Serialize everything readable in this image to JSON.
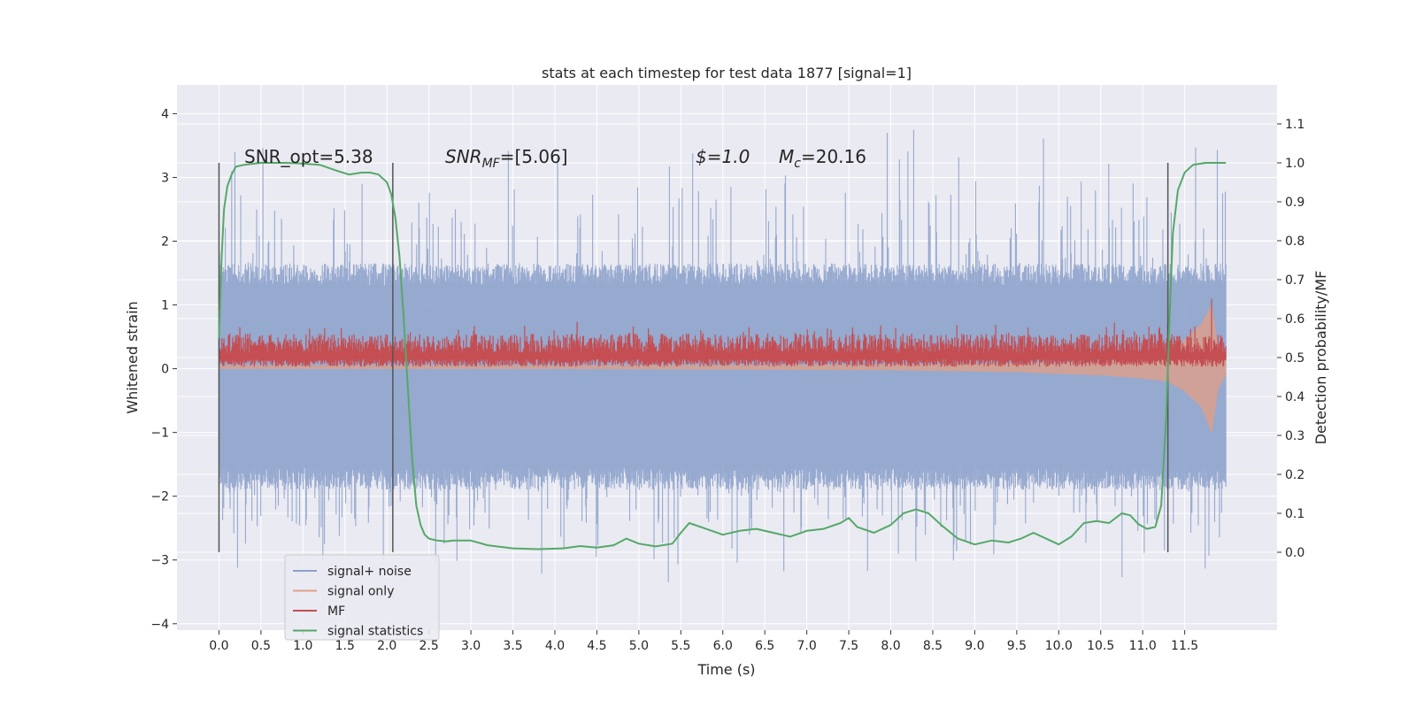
{
  "chart_data": {
    "type": "line",
    "title": "stats at each timestep for test data 1877 [signal=1]",
    "xlabel": "Time (s)",
    "ylabel_left": "Whitened strain",
    "ylabel_right": "Detection probability/MF",
    "xlim": [
      -0.5,
      12.6
    ],
    "ylim_left": [
      -4.1,
      4.45
    ],
    "ylim_right": [
      -0.2,
      1.2
    ],
    "x_ticks": [
      "0.0",
      "0.5",
      "1.0",
      "1.5",
      "2.0",
      "2.5",
      "3.0",
      "3.5",
      "4.0",
      "4.5",
      "5.0",
      "5.5",
      "6.0",
      "6.5",
      "7.0",
      "7.5",
      "8.0",
      "8.5",
      "9.0",
      "9.5",
      "10.0",
      "10.5",
      "11.0",
      "11.5"
    ],
    "y_ticks_left": [
      "4",
      "3",
      "2",
      "1",
      "0",
      "−1",
      "−2",
      "−3",
      "−4"
    ],
    "y_ticks_right": [
      "1.1",
      "1.0",
      "0.9",
      "0.8",
      "0.7",
      "0.6",
      "0.5",
      "0.4",
      "0.3",
      "0.2",
      "0.1",
      "0.0"
    ],
    "grid": true,
    "legend_position": "bottom-left",
    "colors": {
      "noise": "#8da2cb",
      "signal_only": "#e39f85",
      "mf": "#c44e52",
      "stat": "#55a868",
      "vline": "#555555",
      "plot_bg": "#eaeaf2"
    },
    "annotations": {
      "snr_opt": "SNR_opt=5.38",
      "snr_mf_main": "SNR",
      "snr_mf_sub": "MF",
      "snr_mf_value": "=[5.06]",
      "s_text": "$=1.0",
      "mc_main": "M",
      "mc_sub": "c",
      "mc_value": "=20.16"
    },
    "vertical_lines_x": [
      0.0,
      2.07,
      11.3
    ],
    "series": [
      {
        "name": "signal+ noise",
        "x_range": [
          0.0,
          11.99
        ],
        "typical_range_left": [
          -1.7,
          1.45
        ],
        "extreme_range_left": [
          -3.7,
          4.1
        ]
      },
      {
        "name": "signal only",
        "x": [
          0.0,
          4.0,
          8.0,
          9.5,
          10.5,
          11.0,
          11.3,
          11.5,
          11.7,
          11.82,
          11.9,
          11.99
        ],
        "y_upper_left": [
          0.05,
          0.05,
          0.06,
          0.08,
          0.1,
          0.15,
          0.25,
          0.45,
          0.7,
          1.0,
          0.3,
          0.1
        ],
        "y_lower_left": [
          0.0,
          0.0,
          -0.02,
          -0.05,
          -0.1,
          -0.15,
          -0.2,
          -0.35,
          -0.6,
          -1.0,
          -0.3,
          -0.1
        ]
      },
      {
        "name": "MF",
        "x_range": [
          0.0,
          11.99
        ],
        "typical_range_left": [
          0.03,
          0.55
        ],
        "spike": {
          "x": 11.82,
          "y_left": 1.1
        }
      },
      {
        "name": "signal statistics",
        "x": [
          0.0,
          0.03,
          0.06,
          0.1,
          0.15,
          0.2,
          0.3,
          0.5,
          0.8,
          1.0,
          1.2,
          1.4,
          1.55,
          1.7,
          1.8,
          1.9,
          2.0,
          2.05,
          2.1,
          2.15,
          2.2,
          2.25,
          2.3,
          2.35,
          2.4,
          2.45,
          2.5,
          2.6,
          2.7,
          2.8,
          3.0,
          3.2,
          3.5,
          3.8,
          4.1,
          4.3,
          4.5,
          4.7,
          4.85,
          5.0,
          5.2,
          5.4,
          5.5,
          5.6,
          5.8,
          6.0,
          6.2,
          6.4,
          6.6,
          6.8,
          7.0,
          7.2,
          7.4,
          7.5,
          7.6,
          7.8,
          8.0,
          8.15,
          8.3,
          8.45,
          8.6,
          8.8,
          9.0,
          9.2,
          9.4,
          9.55,
          9.7,
          9.9,
          10.0,
          10.15,
          10.3,
          10.45,
          10.6,
          10.75,
          10.85,
          10.95,
          11.05,
          11.15,
          11.22,
          11.28,
          11.32,
          11.36,
          11.42,
          11.5,
          11.6,
          11.75,
          11.9,
          11.99
        ],
        "y_right": [
          0.55,
          0.75,
          0.88,
          0.94,
          0.97,
          0.99,
          0.995,
          1.0,
          1.0,
          0.998,
          0.995,
          0.98,
          0.97,
          0.975,
          0.975,
          0.97,
          0.95,
          0.92,
          0.86,
          0.76,
          0.6,
          0.42,
          0.24,
          0.12,
          0.07,
          0.045,
          0.035,
          0.03,
          0.028,
          0.03,
          0.03,
          0.018,
          0.01,
          0.008,
          0.01,
          0.016,
          0.012,
          0.018,
          0.035,
          0.022,
          0.015,
          0.022,
          0.05,
          0.075,
          0.06,
          0.045,
          0.055,
          0.06,
          0.05,
          0.04,
          0.055,
          0.06,
          0.075,
          0.088,
          0.065,
          0.05,
          0.07,
          0.1,
          0.11,
          0.1,
          0.07,
          0.035,
          0.02,
          0.03,
          0.025,
          0.035,
          0.05,
          0.03,
          0.02,
          0.04,
          0.075,
          0.08,
          0.075,
          0.1,
          0.095,
          0.072,
          0.06,
          0.065,
          0.12,
          0.35,
          0.6,
          0.82,
          0.93,
          0.975,
          0.995,
          1.0,
          1.0,
          1.0
        ]
      }
    ]
  }
}
